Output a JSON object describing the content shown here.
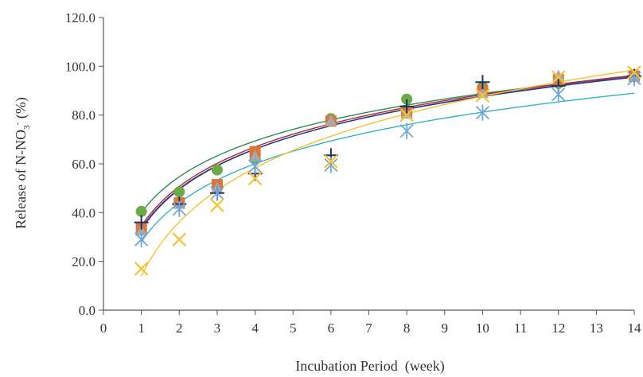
{
  "chart_data": {
    "type": "scatter",
    "title": "",
    "xlabel": "Incubation Period  (week)",
    "ylabel": {
      "prefix": "Release  of N-NO",
      "subscript": "3",
      "superscript": "-",
      "suffix": " (%)"
    },
    "xlim": [
      0,
      14
    ],
    "ylim": [
      0,
      120
    ],
    "xticks": [
      "0",
      "1",
      "2",
      "3",
      "4",
      "5",
      "6",
      "7",
      "8",
      "9",
      "10",
      "11",
      "12",
      "13",
      "14"
    ],
    "yticks": [
      "0.0",
      "20.0",
      "40.0",
      "60.0",
      "80.0",
      "100.0",
      "120.0"
    ],
    "grid": false,
    "legend": "none",
    "series": [
      {
        "marker": "circle",
        "color": "#6aab48",
        "x": [
          1,
          2,
          3,
          4,
          6,
          8,
          10,
          12,
          14
        ],
        "y": [
          40.5,
          48.5,
          57.5,
          62.0,
          78.5,
          86.5,
          91.5,
          93.0,
          96.5
        ],
        "trend": {
          "color": "#2e8b57",
          "a": 40.0,
          "b": 21.2
        }
      },
      {
        "marker": "square",
        "color": "#d9763c",
        "x": [
          1,
          2,
          3,
          4,
          6,
          8,
          10,
          12,
          14
        ],
        "y": [
          33.5,
          44.0,
          51.5,
          65.0,
          77.5,
          81.0,
          90.0,
          94.5,
          96.0
        ],
        "trend": {
          "color": "#b02a2a",
          "a": 34.5,
          "b": 23.4
        }
      },
      {
        "marker": "triangle",
        "color": "#a9a9a9",
        "x": [
          1,
          2,
          3,
          4,
          6,
          8,
          10,
          12,
          14
        ],
        "y": [
          32.5,
          43.5,
          50.0,
          63.0,
          77.5,
          80.5,
          89.0,
          96.0,
          95.5
        ],
        "trend": {
          "color": "#7a3f9e",
          "a": 33.0,
          "b": 23.8
        }
      },
      {
        "marker": "plus",
        "color": "#1f2f5e",
        "x": [
          1,
          2,
          3,
          4,
          6,
          8,
          10,
          12,
          14
        ],
        "y": [
          36.0,
          43.5,
          48.0,
          56.0,
          63.5,
          83.5,
          93.5,
          92.0,
          96.0
        ],
        "trend": {
          "color": "#1f3f8a",
          "a": 33.5,
          "b": 23.5
        }
      },
      {
        "marker": "asterisk",
        "color": "#6fa8dc",
        "x": [
          1,
          2,
          3,
          4,
          6,
          8,
          10,
          12,
          14
        ],
        "y": [
          29.0,
          41.5,
          48.0,
          59.0,
          59.5,
          73.5,
          81.0,
          88.5,
          95.0
        ],
        "trend": {
          "color": "#2fb5c4",
          "a": 28.0,
          "b": 23.1
        }
      },
      {
        "marker": "x",
        "color": "#f5c231",
        "x": [
          1,
          2,
          3,
          4,
          6,
          8,
          10,
          12,
          14
        ],
        "y": [
          17.0,
          29.0,
          43.0,
          54.0,
          61.0,
          80.0,
          88.0,
          95.5,
          97.5
        ],
        "trend": {
          "color": "#f5c231",
          "a": 14.0,
          "b": 32.0
        }
      }
    ]
  }
}
